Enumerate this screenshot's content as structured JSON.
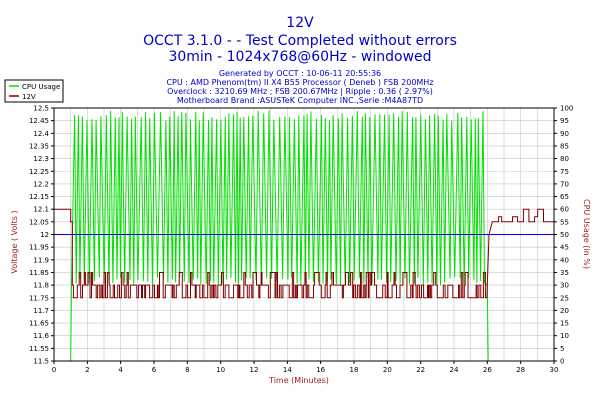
{
  "header": {
    "title": "12V",
    "subtitle1": "OCCT 3.1.0 -  - Test Completed without errors",
    "subtitle2": "30min - 1024x768@60Hz - windowed",
    "info": [
      "Generated by OCCT : 10-06-11 20:55:36",
      "CPU : AMD Phenom(tm) II X4 B55 Processor ( Deneb ) FSB 200MHz",
      "Overclock : 3210.69 MHz ; FSB 200.67MHz | Ripple : 0.36 ( 2.97%)",
      "Motherboard Brand :ASUSTeK Computer INC.,Serie :M4A87TD"
    ]
  },
  "colors": {
    "title": "#0000c8",
    "info": "#0000c8",
    "axis_label": "#a02020",
    "cpu_usage": "#00e000",
    "voltage": "#800000",
    "average": "#0000ff",
    "grid": "#c8c8c8"
  },
  "chart_data": {
    "type": "line",
    "title": "12V",
    "xlabel": "Time (Minutes)",
    "ylabel": "Voltage ( Volts )",
    "y2label": "CPU Usage (in %)",
    "xlim": [
      0,
      30
    ],
    "ylim": [
      11.5,
      12.5
    ],
    "y2lim": [
      0,
      100
    ],
    "grid": true,
    "legend_position": "top-left",
    "x_ticks": [
      0,
      2,
      4,
      6,
      8,
      10,
      12,
      14,
      16,
      18,
      20,
      22,
      24,
      26,
      28,
      30
    ],
    "y_ticks": [
      "11.5",
      "11.55",
      "11.6",
      "11.65",
      "11.7",
      "11.75",
      "11.8",
      "11.85",
      "11.9",
      "11.95",
      "12",
      "12.05",
      "12.1",
      "12.15",
      "12.2",
      "12.25",
      "12.3",
      "12.35",
      "12.4",
      "12.45",
      "12.5"
    ],
    "y2_ticks": [
      0,
      5,
      10,
      15,
      20,
      25,
      30,
      35,
      40,
      45,
      50,
      55,
      60,
      65,
      70,
      75,
      80,
      85,
      90,
      95,
      100
    ],
    "series": [
      {
        "name": "CPU Usage",
        "axis": "right",
        "x": [
          0,
          0.9,
          1.0,
          1.05,
          26.0,
          26.05,
          26.1,
          27,
          28,
          29,
          30
        ],
        "y": [
          0,
          0,
          0,
          30,
          30,
          0,
          0,
          0,
          0,
          0,
          0
        ]
      },
      {
        "name": "12V",
        "axis": "left",
        "x": [
          0,
          1.0,
          1.1,
          26.0,
          26.3,
          27,
          28,
          29,
          30
        ],
        "y": [
          12.1,
          12.1,
          11.8,
          11.8,
          12.05,
          12.07,
          12.1,
          12.1,
          12.1
        ]
      }
    ],
    "average_line": {
      "axis": "left",
      "y": 12.0
    }
  }
}
